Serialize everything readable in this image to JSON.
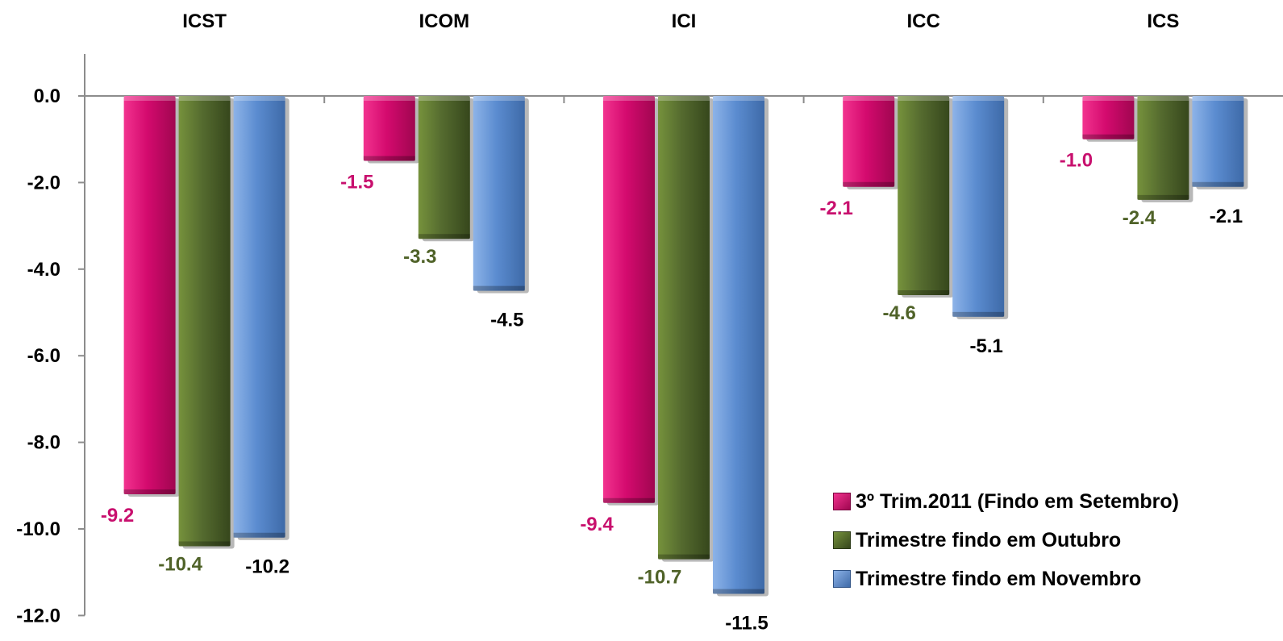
{
  "chart_data": {
    "type": "bar",
    "categories": [
      "ICST",
      "ICOM",
      "ICI",
      "ICC",
      "ICS"
    ],
    "series": [
      {
        "name": "3º Trim.2011 (Findo em Setembro)",
        "values": [
          -9.2,
          -1.5,
          -9.4,
          -2.1,
          -1.0
        ],
        "color": "#D40A6E",
        "label_color": "#C8106E"
      },
      {
        "name": "Trimestre findo  em Outubro",
        "values": [
          -10.4,
          -3.3,
          -10.7,
          -4.6,
          -2.4
        ],
        "color": "#556B2F",
        "label_color": "#4F6228"
      },
      {
        "name": "Trimestre findo  em Novembro",
        "values": [
          -10.2,
          -4.5,
          -11.5,
          -5.1,
          -2.1
        ],
        "color": "#5B8CD0",
        "label_color": "#000000"
      }
    ],
    "value_labels": [
      [
        "-9.2",
        "-1.5",
        "-9.4",
        "-2.1",
        "-1.0"
      ],
      [
        "-10.4",
        "-3.3",
        "-10.7",
        "-4.6",
        "-2.4"
      ],
      [
        "-10.2",
        "-4.5",
        "-11.5",
        "-5.1",
        "-2.1"
      ]
    ],
    "y_ticks": [
      0,
      -2,
      -4,
      -6,
      -8,
      -10,
      -12
    ],
    "y_tick_labels": [
      "0.0",
      "-2.0",
      "-4.0",
      "-6.0",
      "-8.0",
      "-10.0",
      "-12.0"
    ],
    "ylim": [
      -12,
      1
    ],
    "grid": false,
    "category_labels_position": "top",
    "legend_position": "bottom-right",
    "title": "",
    "xlabel": "",
    "ylabel": ""
  }
}
